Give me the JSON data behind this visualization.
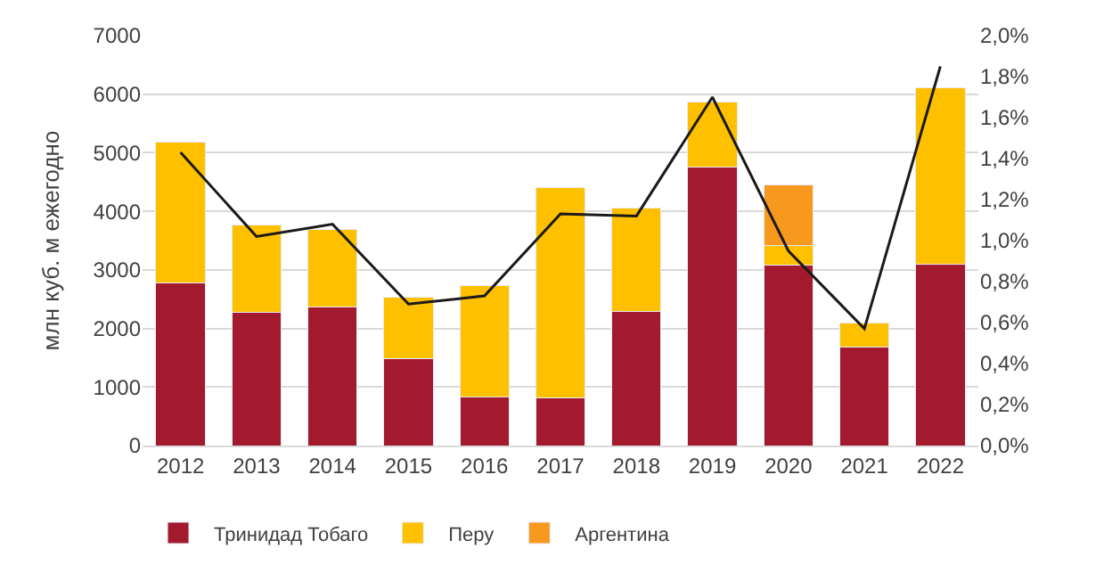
{
  "chart_data": {
    "type": "bar",
    "stacked": true,
    "ylabel": "млн куб. м ежегодно",
    "categories": [
      "2012",
      "2013",
      "2014",
      "2015",
      "2016",
      "2017",
      "2018",
      "2019",
      "2020",
      "2021",
      "2022"
    ],
    "series": [
      {
        "name": "Тринидад Тобаго",
        "color": "#a31a2e",
        "values": [
          2780,
          2270,
          2370,
          1480,
          830,
          810,
          2290,
          4750,
          3080,
          1680,
          3100
        ]
      },
      {
        "name": "Перу",
        "color": "#ffc000",
        "values": [
          2400,
          1490,
          1320,
          1050,
          1900,
          3590,
          1770,
          1120,
          340,
          420,
          3010
        ]
      },
      {
        "name": "Аргентина",
        "color": "#f7991e",
        "values": [
          null,
          null,
          null,
          null,
          null,
          null,
          null,
          null,
          1030,
          null,
          null
        ]
      },
      {
        "type": "line",
        "axis": "y2",
        "color": "#1a1a1a",
        "values": [
          1.43,
          1.02,
          1.08,
          0.69,
          0.73,
          1.13,
          1.12,
          1.7,
          0.95,
          0.57,
          1.85
        ]
      }
    ],
    "ylim": [
      0,
      7000
    ],
    "yticks": [
      0,
      1000,
      2000,
      3000,
      4000,
      5000,
      6000,
      7000
    ],
    "y2lim": [
      0,
      2.0
    ],
    "y2ticks": [
      {
        "value": 0,
        "label": "0,0%"
      },
      {
        "value": 0.2,
        "label": "0,2%"
      },
      {
        "value": 0.4,
        "label": "0,4%"
      },
      {
        "value": 0.6,
        "label": "0,6%"
      },
      {
        "value": 0.8,
        "label": "0,8%"
      },
      {
        "value": 1.0,
        "label": "1,0%"
      },
      {
        "value": 1.2,
        "label": "1,2%"
      },
      {
        "value": 1.4,
        "label": "1,4%"
      },
      {
        "value": 1.6,
        "label": "1,6%"
      },
      {
        "value": 1.8,
        "label": "1,8%"
      },
      {
        "value": 2.0,
        "label": "2,0%"
      }
    ],
    "grid": "y",
    "legend": "bottom",
    "marker": "none",
    "line_style": "solid"
  }
}
